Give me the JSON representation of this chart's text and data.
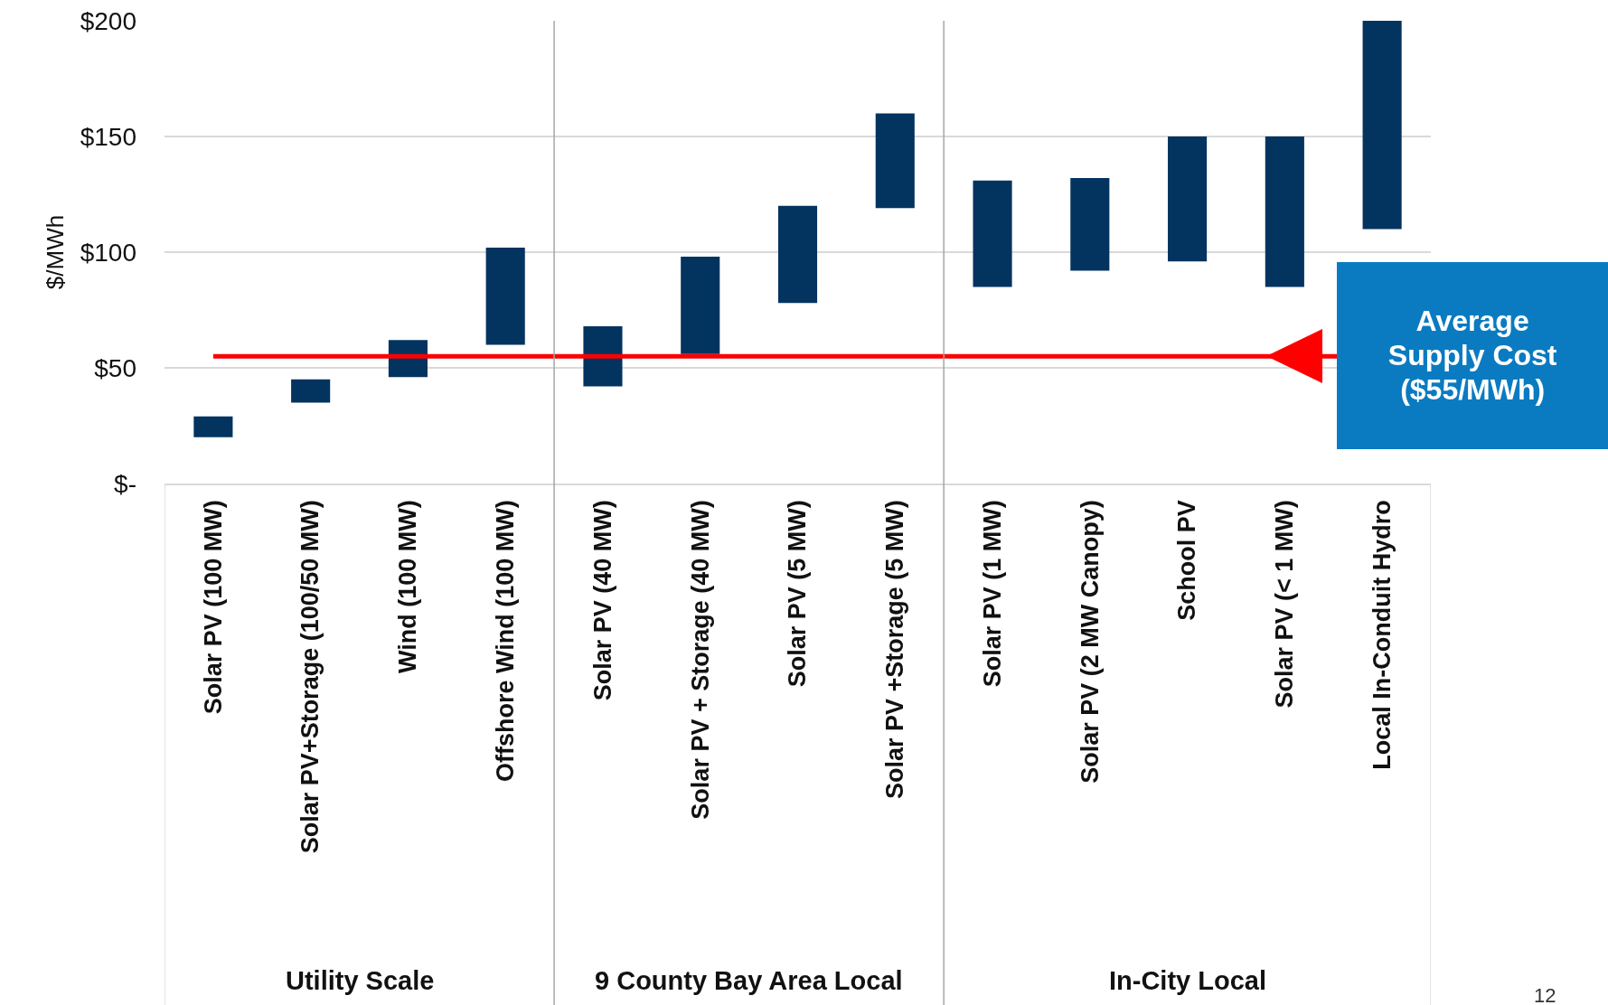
{
  "chart_data": {
    "type": "bar",
    "ylabel": "$/MWh",
    "categories": [
      "Solar PV (100 MW)",
      "Solar PV+Storage (100/50 MW)",
      "Wind (100 MW)",
      "Offshore Wind (100 MW)",
      "Solar PV (40 MW)",
      "Solar PV + Storage (40 MW)",
      "Solar PV (5 MW)",
      "Solar PV +Storage (5 MW)",
      "Solar PV (1 MW)",
      "Solar PV (2 MW Canopy)",
      "School PV",
      "Solar PV (< 1 MW)",
      "Local In-Conduit Hydro"
    ],
    "base": [
      20,
      35,
      46,
      60,
      42,
      56,
      78,
      119,
      85,
      92,
      96,
      85,
      110
    ],
    "values": [
      9,
      10,
      16,
      42,
      26,
      42,
      42,
      41,
      46,
      40,
      54,
      65,
      90
    ],
    "color": "#03335f",
    "ylim": [
      0,
      200
    ],
    "yticks": [
      {
        "value": 0,
        "label": "$-"
      },
      {
        "value": 50,
        "label": "$50"
      },
      {
        "value": 100,
        "label": "$100"
      },
      {
        "value": 150,
        "label": "$150"
      },
      {
        "value": 200,
        "label": "$200"
      }
    ],
    "grid": "y",
    "ref_lines": [
      {
        "axis": "y",
        "value": 55,
        "label": "Average Supply Cost ($55/MWh)",
        "color": "#ff0000"
      }
    ],
    "annotations": [
      "Utility Scale",
      "9 County Bay Area Local",
      "In-City Local",
      "12"
    ]
  }
}
